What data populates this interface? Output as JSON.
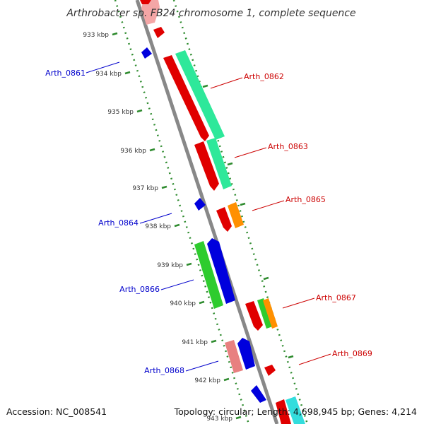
{
  "title": "Arthrobacter sp. FB24 chromosome 1, complete sequence",
  "footer": {
    "accession": "Accession: NC_008541",
    "topology": "Topology: circular; Length: 4,698,945 bp; Genes: 4,214"
  },
  "colors": {
    "backbone": "#888888",
    "ruler_tick": "#2e8b2e",
    "label_reverse": "#0000cc",
    "label_forward": "#cc0000"
  },
  "ticks": [
    {
      "label": "933 kbp"
    },
    {
      "label": "934 kbp"
    },
    {
      "label": "935 kbp"
    },
    {
      "label": "936 kbp"
    },
    {
      "label": "937 kbp"
    },
    {
      "label": "938 kbp"
    },
    {
      "label": "939 kbp"
    },
    {
      "label": "940 kbp"
    },
    {
      "label": "941 kbp"
    },
    {
      "label": "942 kbp"
    },
    {
      "label": "943 kbp"
    }
  ],
  "gene_labels": [
    {
      "text": "Arth_0861",
      "strand": "reverse"
    },
    {
      "text": "Arth_0862",
      "strand": "forward"
    },
    {
      "text": "Arth_0863",
      "strand": "forward"
    },
    {
      "text": "Arth_0864",
      "strand": "reverse"
    },
    {
      "text": "Arth_0865",
      "strand": "forward"
    },
    {
      "text": "Arth_0866",
      "strand": "reverse"
    },
    {
      "text": "Arth_0867",
      "strand": "forward"
    },
    {
      "text": "Arth_0868",
      "strand": "reverse"
    },
    {
      "text": "Arth_0869",
      "strand": "forward"
    }
  ]
}
